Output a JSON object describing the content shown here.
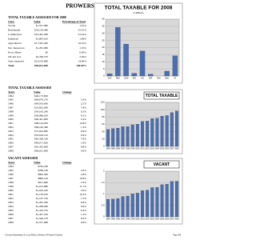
{
  "header": {
    "title": "PROWERS COUNTY"
  },
  "tables": [
    {
      "title": "TOTAL TAXABLE ASSESSED FOR 2008",
      "columns": [
        "Class",
        "Value",
        "Percentage of Total"
      ],
      "rows": [
        [
          "Vacant",
          "$1,557,980",
          "1.61%"
        ],
        [
          "Residential",
          "$34,219,480",
          "35.41%"
        ],
        [
          "Commercial",
          "$22,461,280",
          "23.24%"
        ],
        [
          "Industrial",
          "$1,895,610",
          "1.96%"
        ],
        [
          "Agricultural",
          "$17,581,400",
          "18.19%"
        ],
        [
          "Nat. Resources",
          "$1,281,080",
          "1.33%"
        ],
        [
          "Prod. Mines",
          "$0",
          "0.00%"
        ],
        [
          "Oil and Gas",
          "$3,438,370",
          "3.56%"
        ],
        [
          "State Assessed",
          "$14,195,890",
          "14.69%"
        ],
        [
          "Total",
          "$96,631,090",
          "100.00%"
        ]
      ]
    },
    {
      "title": "TOTAL TAXABLE ASSESSED",
      "columns": [
        "Years",
        "Value",
        "Change"
      ],
      "rows": [
        [
          "1994",
          "$46,173,830"
        ],
        [
          "1995",
          "$48,679,270",
          "5.4%"
        ],
        [
          "1996",
          "$49,919,000",
          "2.5%"
        ],
        [
          "1997",
          "$53,822,000",
          "7.8%"
        ],
        [
          "1998",
          "$54,010,240",
          "0.3%"
        ],
        [
          "1999",
          "$58,986,050",
          "9.2%"
        ],
        [
          "2000",
          "$60,401,000",
          "2.4%"
        ],
        [
          "2001",
          "$68,144,930",
          "12.8%"
        ],
        [
          "2002",
          "$69,100,380",
          "1.4%"
        ],
        [
          "2003",
          "$75,924,860",
          "9.9%"
        ],
        [
          "2004",
          "$76,618,210",
          "0.9%"
        ],
        [
          "2005",
          "$82,560,160",
          "7.8%"
        ],
        [
          "2006",
          "$84,071,920",
          "1.8%"
        ],
        [
          "2007",
          "$92,345,600",
          "9.8%"
        ],
        [
          "2008",
          "$96,631,090",
          "4.6%"
        ]
      ]
    },
    {
      "title": "VACANT ASSESSED",
      "columns": [
        "Years",
        "Value",
        "Change"
      ],
      "rows": [
        [
          "1994",
          "$765,180"
        ],
        [
          "1995",
          "$780,160",
          "2.0%"
        ],
        [
          "1996",
          "$802,300",
          "2.8%"
        ],
        [
          "1997",
          "$890,140",
          "10.9%"
        ],
        [
          "1998",
          "$911,660",
          "2.4%"
        ],
        [
          "1999",
          "$1,012,880",
          "11.1%"
        ],
        [
          "2000",
          "$1,043,220",
          "3.0%"
        ],
        [
          "2001",
          "$1,150,010",
          "10.2%"
        ],
        [
          "2002",
          "$1,167,740",
          "1.5%"
        ],
        [
          "2003",
          "$1,281,590",
          "9.8%"
        ],
        [
          "2004",
          "$1,289,060",
          "0.6%"
        ],
        [
          "2005",
          "$1,410,370",
          "9.4%"
        ],
        [
          "2006",
          "$1,427,220",
          "1.2%"
        ],
        [
          "2007",
          "$1,546,130",
          "8.3%"
        ],
        [
          "2008",
          "$1,557,980",
          "0.8%"
        ]
      ]
    }
  ],
  "chart_data": [
    {
      "type": "bar",
      "title": "TOTAL TAXABLE FOR 2008",
      "subtitle": "in Millions",
      "categories": [
        "VAC",
        "RES",
        "COM",
        "IND",
        "AG",
        "NAT",
        "MIN",
        "O&G",
        "ST"
      ],
      "values": [
        1.6,
        34.2,
        22.5,
        1.9,
        17.6,
        1.3,
        0,
        3.4,
        14.2
      ],
      "ylim": [
        0,
        40
      ],
      "yticks": [
        0,
        5,
        10,
        15,
        20,
        25,
        30,
        35,
        40
      ],
      "color": "#4a6fb0",
      "grid": true
    },
    {
      "type": "bar",
      "title": "TOTAL TAXABLE",
      "categories": [
        "1994",
        "1995",
        "1996",
        "1997",
        "1998",
        "1999",
        "2000",
        "2001",
        "2002",
        "2003",
        "2004",
        "2005",
        "2006",
        "2007",
        "2008"
      ],
      "values": [
        46.2,
        48.7,
        49.9,
        53.8,
        54.0,
        59.0,
        60.4,
        68.1,
        69.1,
        75.9,
        76.6,
        82.6,
        84.1,
        92.3,
        96.6
      ],
      "ylim": [
        0,
        120
      ],
      "yticks": [
        0,
        20,
        40,
        60,
        80,
        100,
        120
      ],
      "color": "#4a6fb0",
      "grid": true
    },
    {
      "type": "bar",
      "title": "VACANT",
      "categories": [
        "1994",
        "1995",
        "1996",
        "1997",
        "1998",
        "1999",
        "2000",
        "2001",
        "2002",
        "2003",
        "2004",
        "2005",
        "2006",
        "2007",
        "2008"
      ],
      "values": [
        0.77,
        0.78,
        0.8,
        0.89,
        0.91,
        1.01,
        1.04,
        1.15,
        1.17,
        1.28,
        1.29,
        1.41,
        1.43,
        1.55,
        1.56
      ],
      "ylim": [
        0,
        2
      ],
      "yticks": [
        0,
        0.5,
        1,
        1.5,
        2
      ],
      "color": "#4a6fb0",
      "grid": true
    }
  ],
  "footer": {
    "source": "Colorado Department of Local Affairs, Division of Property Taxation",
    "page": "Page 298"
  }
}
